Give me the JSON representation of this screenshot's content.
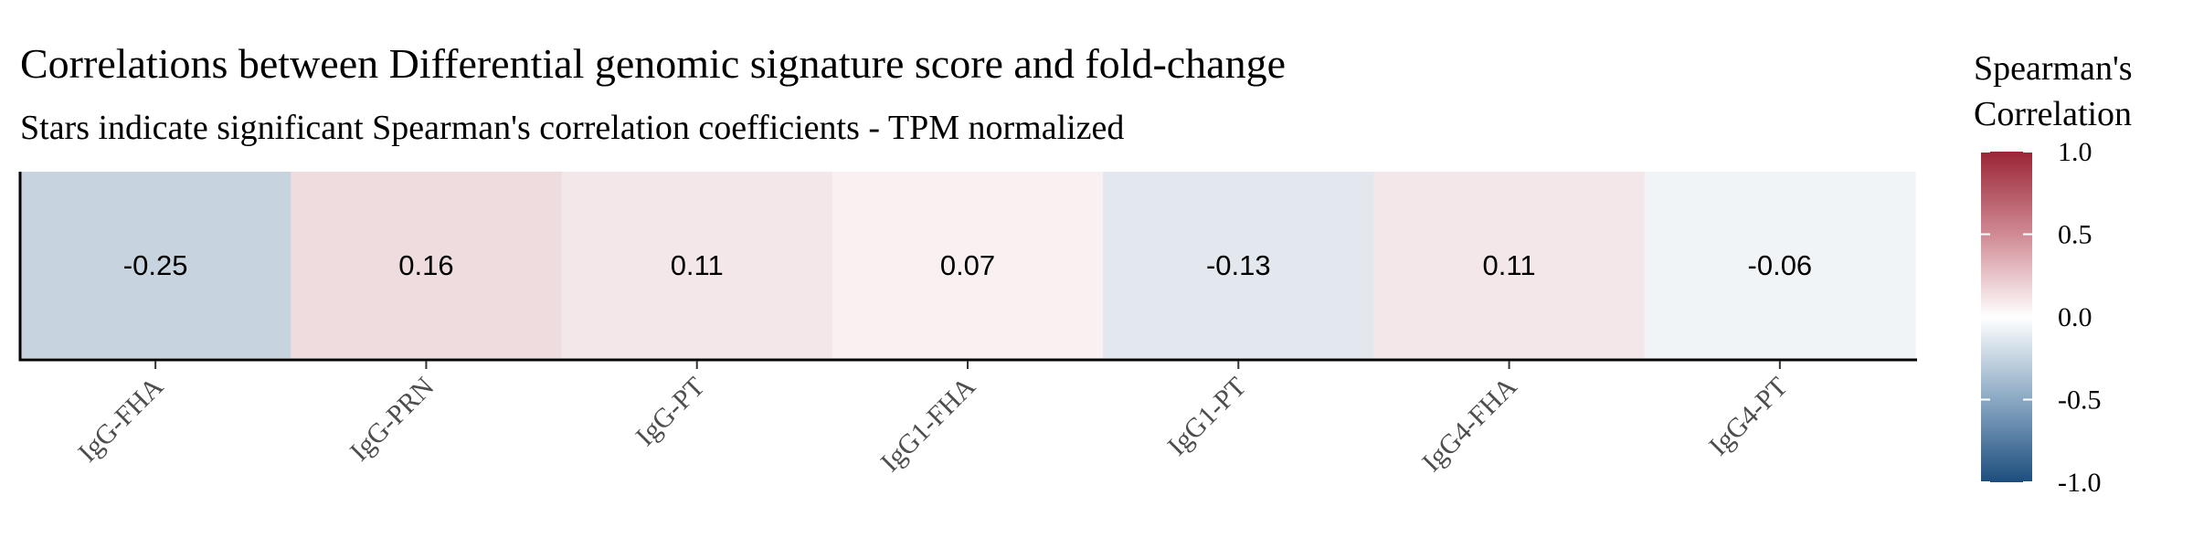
{
  "chart_data": {
    "type": "heatmap",
    "title": "Correlations between Differential genomic signature score and fold-change",
    "subtitle": "Stars indicate significant Spearman's correlation coefficients - TPM normalized",
    "xlabel": "",
    "ylabel": "",
    "categories": [
      "IgG-FHA",
      "IgG-PRN",
      "IgG-PT",
      "IgG1-FHA",
      "IgG1-PT",
      "IgG4-FHA",
      "IgG4-PT"
    ],
    "values": [
      -0.25,
      0.16,
      0.11,
      0.07,
      -0.13,
      0.11,
      -0.06
    ],
    "value_labels": [
      "-0.25",
      "0.16",
      "0.11",
      "0.07",
      "-0.13",
      "0.11",
      "-0.06"
    ],
    "legend": {
      "title_line1": "Spearman's",
      "title_line2": "Correlation",
      "range": [
        -1.0,
        1.0
      ],
      "ticks": [
        1.0,
        0.5,
        0.0,
        -0.5,
        -1.0
      ],
      "tick_labels": [
        "1.0",
        "0.5",
        "0.0",
        "-0.5",
        "-1.0"
      ],
      "placement": "right"
    },
    "colors": {
      "low": "#1d4e7e",
      "mid": "#ffffff",
      "high": "#9a2536"
    }
  }
}
